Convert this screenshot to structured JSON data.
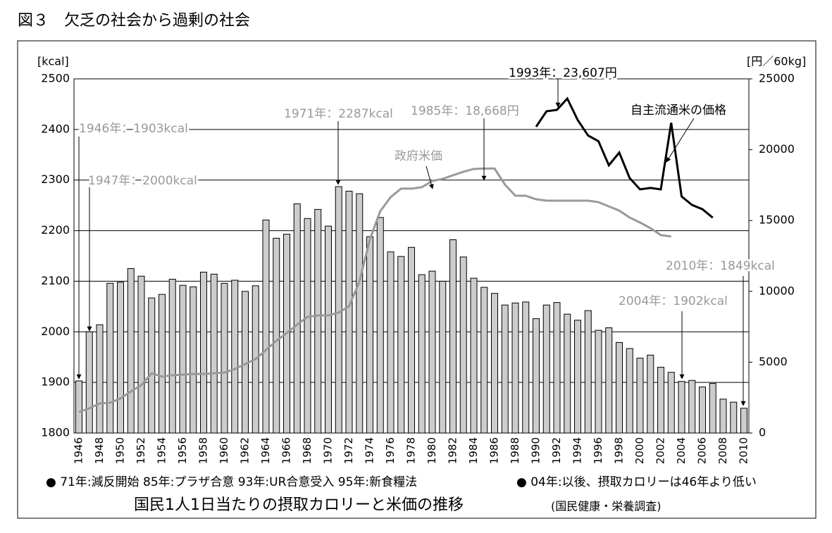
{
  "chart_data": {
    "type": "bar_line",
    "title": "図３　欠乏の社会から過剰の社会",
    "caption": "国民1人1日当たりの摂取カロリーと米価の推移",
    "source": "(国民健康・栄養調査)",
    "ylabel": "[kcal]",
    "y2label": "[円／60kg]",
    "notes": [
      "● 71年:減反開始 85年:プラザ合意 93年:UR合意受入 95年:新食糧法",
      "● 04年:以後、摂取カロリーは46年より低い"
    ],
    "annotations": [
      "1946年：1903kcal",
      "1947年：2000kcal",
      "1971年：2287kcal",
      "1985年：18,668円",
      "1993年：23,607円",
      "2010年：1849kcal",
      "2004年：1902kcal"
    ],
    "categories": [
      "1946",
      null,
      "1948",
      null,
      "1950",
      null,
      "1952",
      null,
      "1954",
      null,
      "1956",
      null,
      "1958",
      null,
      "1960",
      null,
      "1962",
      null,
      "1964",
      null,
      "1966",
      null,
      "1968",
      null,
      "1970",
      null,
      "1972",
      null,
      "1974",
      null,
      "1976",
      null,
      "1978",
      null,
      "1980",
      null,
      "1982",
      null,
      "1984",
      null,
      "1986",
      null,
      "1988",
      null,
      "1990",
      null,
      "1992",
      null,
      "1994",
      null,
      "1996",
      null,
      "1998",
      null,
      "2000",
      null,
      "2002",
      null,
      "2004",
      null,
      "2006",
      null,
      "2008",
      null,
      "2010"
    ],
    "series": [
      {
        "name": "摂取カロリー",
        "color": "#cccccc",
        "values": [
          1903,
          2000,
          2014,
          2096,
          2098,
          2125,
          2110,
          2067,
          2074,
          2104,
          2092,
          2089,
          2118,
          2114,
          2096,
          2102,
          2080,
          2091,
          2221,
          2185,
          2193,
          2253,
          2224,
          2242,
          2209,
          2287,
          2278,
          2273,
          2188,
          2226,
          2158,
          2149,
          2167,
          2113,
          2120,
          2100,
          2182,
          2148,
          2106,
          2088,
          2076,
          2053,
          2057,
          2059,
          2026,
          2053,
          2058,
          2035,
          2023,
          2042,
          2003,
          2008,
          1979,
          1967,
          1948,
          1954,
          1930,
          1920,
          1902,
          1904,
          1891,
          1898,
          1867,
          1861,
          1849
        ]
      },
      {
        "name": "政府米価",
        "color": "#999999",
        "axis": "y2",
        "values": [
          1490,
          1740,
          2090,
          2140,
          2440,
          2930,
          3380,
          4220,
          3980,
          4080,
          4120,
          4170,
          4170,
          4220,
          4270,
          4520,
          4870,
          5220,
          5860,
          6510,
          7060,
          7650,
          8200,
          8300,
          8300,
          8500,
          8950,
          10690,
          13670,
          15660,
          16650,
          17250,
          17250,
          17350,
          17790,
          17940,
          18190,
          18440,
          18640,
          18668,
          18668,
          17540,
          16750,
          16750,
          16500,
          16400,
          16400,
          16400,
          16400,
          16400,
          16300,
          16000,
          15700,
          15210,
          14860,
          14460,
          13970,
          13870,
          null,
          null,
          null,
          null,
          null,
          null,
          null
        ]
      },
      {
        "name": "自主流通米の価格",
        "color": "#000000",
        "axis": "y2",
        "values": [
          null,
          null,
          null,
          null,
          null,
          null,
          null,
          null,
          null,
          null,
          null,
          null,
          null,
          null,
          null,
          null,
          null,
          null,
          null,
          null,
          null,
          null,
          null,
          null,
          null,
          null,
          null,
          null,
          null,
          null,
          null,
          null,
          null,
          null,
          null,
          null,
          null,
          null,
          null,
          null,
          null,
          null,
          null,
          null,
          21620,
          22710,
          22810,
          23607,
          22100,
          21000,
          20600,
          18900,
          19800,
          18000,
          17200,
          17300,
          17200,
          21900,
          16700,
          16100,
          15800,
          15200,
          null,
          null,
          null
        ]
      }
    ],
    "ylim": [
      1800,
      2500
    ],
    "yticks": [
      1800,
      1900,
      2000,
      2100,
      2200,
      2300,
      2400,
      2500
    ],
    "y2lim": [
      0,
      25000
    ],
    "y2ticks": [
      0,
      5000,
      10000,
      15000,
      20000,
      25000
    ],
    "grid": true
  }
}
